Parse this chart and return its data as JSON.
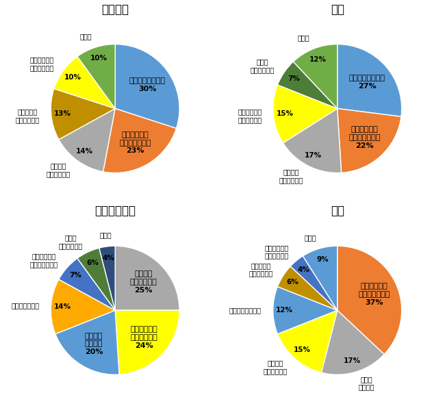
{
  "charts": [
    {
      "title": "ベトナム",
      "slices": [
        {
          "label": "残業代を稼ぎたい",
          "pct": 30,
          "color": "#5B9BD5",
          "label_in": true
        },
        {
          "label": "自分の仕事が\n終わらなかった",
          "pct": 23,
          "color": "#ED7D31",
          "label_in": true
        },
        {
          "label": "上司から\n依頼があった",
          "pct": 14,
          "color": "#A9A9A9",
          "label_in": false
        },
        {
          "label": "トラブルに\n巻き込まれた",
          "pct": 13,
          "color": "#BF8F00",
          "label_in": false
        },
        {
          "label": "一緒に働く人\nを手伝いたい",
          "pct": 10,
          "color": "#FFFF00",
          "label_in": false
        },
        {
          "label": "その他",
          "pct": 10,
          "color": "#70AD47",
          "label_in": false
        }
      ],
      "startangle": 90
    },
    {
      "title": "タイ",
      "slices": [
        {
          "label": "残業代を稼ぎたい",
          "pct": 27,
          "color": "#5B9BD5",
          "label_in": true
        },
        {
          "label": "自分の仕事が\n終わらなかった",
          "pct": 22,
          "color": "#ED7D31",
          "label_in": true
        },
        {
          "label": "上司から\n依頼があった",
          "pct": 17,
          "color": "#A9A9A9",
          "label_in": false
        },
        {
          "label": "一緒に働く人\nを手伝いたい",
          "pct": 15,
          "color": "#FFFF00",
          "label_in": false
        },
        {
          "label": "上司が\n帰らないから",
          "pct": 7,
          "color": "#4E7D38",
          "label_in": false
        },
        {
          "label": "その他",
          "pct": 12,
          "color": "#70AD47",
          "label_in": false
        }
      ],
      "startangle": 90
    },
    {
      "title": "インドネシア",
      "slices": [
        {
          "label": "上司から\n依頼があった",
          "pct": 25,
          "color": "#A9A9A9",
          "label_in": true
        },
        {
          "label": "一緒に働く人\nを手伝いたい",
          "pct": 24,
          "color": "#FFFF00",
          "label_in": true
        },
        {
          "label": "残業代を\n稼ぎたい",
          "pct": 20,
          "color": "#5B9BD5",
          "label_in": true
        },
        {
          "label": "人手が足りない",
          "pct": 14,
          "color": "#FFAA00",
          "label_in": false
        },
        {
          "label": "自分の仕事が\n終わらなかった",
          "pct": 7,
          "color": "#4472C4",
          "label_in": false
        },
        {
          "label": "上司が\n帰らないから",
          "pct": 6,
          "color": "#4E7D38",
          "label_in": false
        },
        {
          "label": "その他",
          "pct": 4,
          "color": "#2E4D7B",
          "label_in": false
        }
      ],
      "startangle": 90
    },
    {
      "title": "日本",
      "slices": [
        {
          "label": "自分の仕事が\n終わらなかった",
          "pct": 37,
          "color": "#ED7D31",
          "label_in": true
        },
        {
          "label": "人手が\n足りない",
          "pct": 17,
          "color": "#A9A9A9",
          "label_in": false
        },
        {
          "label": "上司から\n依頼があった",
          "pct": 15,
          "color": "#FFFF00",
          "label_in": false
        },
        {
          "label": "残業代を稼ぎたい",
          "pct": 12,
          "color": "#5B9BD5",
          "label_in": false
        },
        {
          "label": "トラブルに\n巻き込まれた",
          "pct": 6,
          "color": "#BF8F00",
          "label_in": false
        },
        {
          "label": "一緒に働く人\nを手伝いたい",
          "pct": 4,
          "color": "#4472C4",
          "label_in": false
        },
        {
          "label": "その他",
          "pct": 9,
          "color": "#5B9BD5",
          "label_in": false
        }
      ],
      "startangle": 90
    }
  ],
  "background_color": "#FFFFFF"
}
